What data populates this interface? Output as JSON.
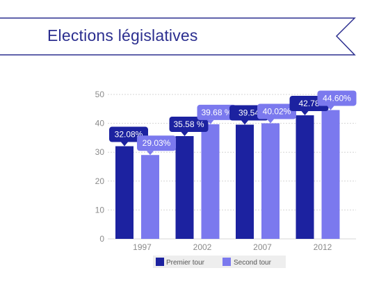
{
  "page": {
    "title": "Elections législatives"
  },
  "colors": {
    "banner_stroke": "#2b2e8f",
    "series_1": "#1c22a0",
    "series_2": "#7b79ee",
    "grid": "#d4d4d4",
    "legend_bg": "#eeeeee"
  },
  "chart_data": {
    "type": "bar",
    "categories": [
      "1997",
      "2002",
      "2007",
      "2012"
    ],
    "series": [
      {
        "name": "Premier tour",
        "values": [
          32.08,
          35.58,
          39.54,
          42.78
        ],
        "labels": [
          "32.08%",
          "35.58 %",
          "39.54",
          "42.78"
        ]
      },
      {
        "name": "Second tour",
        "values": [
          29.03,
          39.68,
          40.02,
          44.6
        ],
        "labels": [
          "29.03%",
          "39.68 %",
          "40.02%",
          "44.60%"
        ]
      }
    ],
    "yticks": [
      "0",
      "10",
      "20",
      "30",
      "40",
      "50"
    ],
    "ylim": [
      0,
      50
    ],
    "grid": true,
    "legend_position": "bottom"
  }
}
